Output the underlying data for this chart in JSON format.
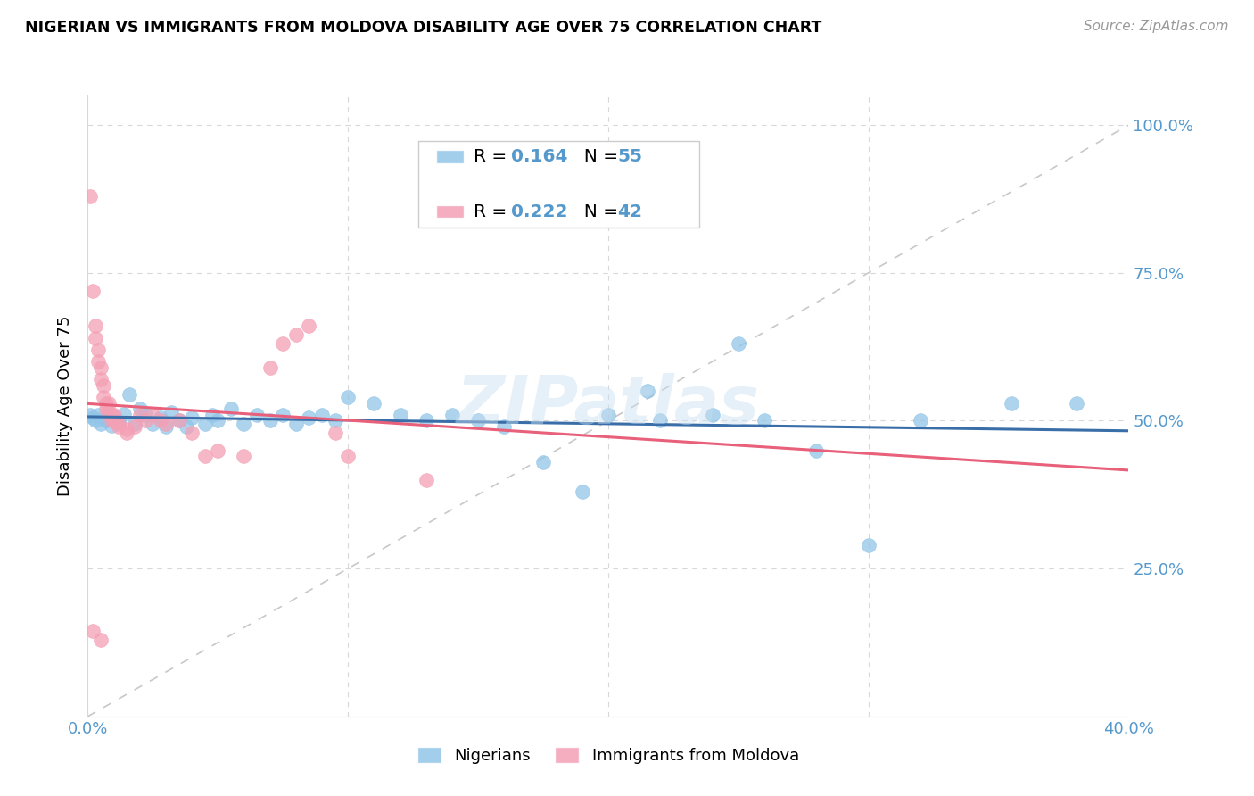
{
  "title": "NIGERIAN VS IMMIGRANTS FROM MOLDOVA DISABILITY AGE OVER 75 CORRELATION CHART",
  "source": "Source: ZipAtlas.com",
  "ylabel": "Disability Age Over 75",
  "xlim": [
    0.0,
    0.4
  ],
  "ylim": [
    0.0,
    1.05
  ],
  "watermark": "ZIPatlas",
  "legend_blue_R": "0.164",
  "legend_blue_N": "55",
  "legend_pink_R": "0.222",
  "legend_pink_N": "42",
  "blue_color": "#92c5e8",
  "pink_color": "#f4a0b5",
  "blue_line_color": "#3a6ea8",
  "pink_line_color": "#e8607a",
  "blue_scatter": [
    [
      0.001,
      0.51
    ],
    [
      0.002,
      0.505
    ],
    [
      0.003,
      0.5
    ],
    [
      0.004,
      0.51
    ],
    [
      0.005,
      0.495
    ],
    [
      0.006,
      0.505
    ],
    [
      0.007,
      0.5
    ],
    [
      0.008,
      0.508
    ],
    [
      0.009,
      0.492
    ],
    [
      0.01,
      0.505
    ],
    [
      0.012,
      0.498
    ],
    [
      0.014,
      0.512
    ],
    [
      0.016,
      0.545
    ],
    [
      0.018,
      0.495
    ],
    [
      0.02,
      0.52
    ],
    [
      0.022,
      0.51
    ],
    [
      0.025,
      0.495
    ],
    [
      0.028,
      0.505
    ],
    [
      0.03,
      0.49
    ],
    [
      0.032,
      0.515
    ],
    [
      0.035,
      0.5
    ],
    [
      0.038,
      0.49
    ],
    [
      0.04,
      0.505
    ],
    [
      0.045,
      0.495
    ],
    [
      0.048,
      0.51
    ],
    [
      0.05,
      0.5
    ],
    [
      0.055,
      0.52
    ],
    [
      0.06,
      0.495
    ],
    [
      0.065,
      0.51
    ],
    [
      0.07,
      0.5
    ],
    [
      0.075,
      0.51
    ],
    [
      0.08,
      0.495
    ],
    [
      0.085,
      0.505
    ],
    [
      0.09,
      0.51
    ],
    [
      0.095,
      0.5
    ],
    [
      0.1,
      0.54
    ],
    [
      0.11,
      0.53
    ],
    [
      0.12,
      0.51
    ],
    [
      0.13,
      0.5
    ],
    [
      0.14,
      0.51
    ],
    [
      0.15,
      0.5
    ],
    [
      0.16,
      0.49
    ],
    [
      0.175,
      0.43
    ],
    [
      0.19,
      0.38
    ],
    [
      0.2,
      0.51
    ],
    [
      0.215,
      0.55
    ],
    [
      0.22,
      0.5
    ],
    [
      0.24,
      0.51
    ],
    [
      0.25,
      0.63
    ],
    [
      0.26,
      0.5
    ],
    [
      0.28,
      0.45
    ],
    [
      0.3,
      0.29
    ],
    [
      0.32,
      0.5
    ],
    [
      0.355,
      0.53
    ],
    [
      0.38,
      0.53
    ]
  ],
  "pink_scatter": [
    [
      0.001,
      0.88
    ],
    [
      0.002,
      0.72
    ],
    [
      0.003,
      0.66
    ],
    [
      0.003,
      0.64
    ],
    [
      0.004,
      0.62
    ],
    [
      0.004,
      0.6
    ],
    [
      0.005,
      0.59
    ],
    [
      0.005,
      0.57
    ],
    [
      0.006,
      0.56
    ],
    [
      0.006,
      0.54
    ],
    [
      0.007,
      0.53
    ],
    [
      0.007,
      0.52
    ],
    [
      0.008,
      0.53
    ],
    [
      0.008,
      0.515
    ],
    [
      0.009,
      0.51
    ],
    [
      0.009,
      0.5
    ],
    [
      0.01,
      0.51
    ],
    [
      0.01,
      0.5
    ],
    [
      0.012,
      0.495
    ],
    [
      0.012,
      0.49
    ],
    [
      0.015,
      0.485
    ],
    [
      0.015,
      0.48
    ],
    [
      0.018,
      0.49
    ],
    [
      0.02,
      0.51
    ],
    [
      0.022,
      0.5
    ],
    [
      0.025,
      0.51
    ],
    [
      0.028,
      0.5
    ],
    [
      0.03,
      0.495
    ],
    [
      0.035,
      0.5
    ],
    [
      0.04,
      0.48
    ],
    [
      0.045,
      0.44
    ],
    [
      0.05,
      0.45
    ],
    [
      0.06,
      0.44
    ],
    [
      0.07,
      0.59
    ],
    [
      0.075,
      0.63
    ],
    [
      0.08,
      0.645
    ],
    [
      0.085,
      0.66
    ],
    [
      0.095,
      0.48
    ],
    [
      0.1,
      0.44
    ],
    [
      0.13,
      0.4
    ],
    [
      0.005,
      0.13
    ],
    [
      0.002,
      0.145
    ]
  ],
  "background_color": "#ffffff",
  "grid_color": "#d8d8d8"
}
